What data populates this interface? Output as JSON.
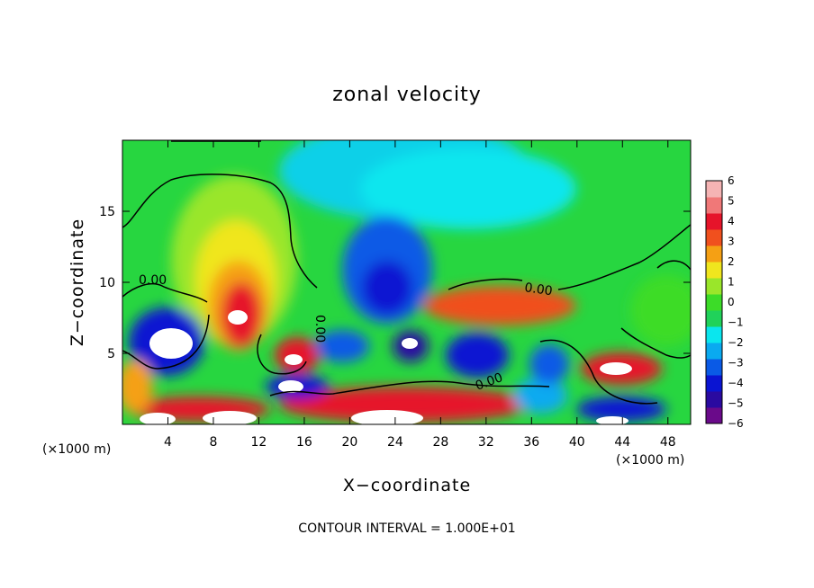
{
  "chart_data": {
    "type": "heatmap",
    "title": "zonal velocity",
    "xlabel": "X−coordinate",
    "ylabel": "Z−coordinate",
    "x_unit": "(×1000 m)",
    "y_unit": "(×1000 m)",
    "xlim": [
      0,
      50
    ],
    "ylim": [
      0,
      20
    ],
    "x_ticks": [
      4,
      8,
      12,
      16,
      20,
      24,
      28,
      32,
      36,
      40,
      44,
      48
    ],
    "y_ticks": [
      5,
      10,
      15
    ],
    "colorbar": {
      "min": -6,
      "max": 6,
      "ticks": [
        6,
        5,
        4,
        3,
        2,
        1,
        0,
        -1,
        -2,
        -3,
        -4,
        -5,
        -6
      ],
      "colors": [
        "#6a0a8a",
        "#2a0aa0",
        "#0a14d2",
        "#0a5ae6",
        "#0aaaf0",
        "#0ae6ee",
        "#20d25a",
        "#3cdc28",
        "#9ae62a",
        "#f0e61e",
        "#f5a014",
        "#f0501e",
        "#e6142a",
        "#f07878",
        "#f5b4b4"
      ]
    },
    "contour_label": "0.00",
    "footer": "CONTOUR INTERVAL = 1.000E+01",
    "grid": false,
    "features": [
      {
        "x": 0,
        "z": 20,
        "value": -1.5
      },
      {
        "x": 8,
        "z": 18,
        "value": -0.3
      },
      {
        "x": 20,
        "z": 18,
        "value": -2.3
      },
      {
        "x": 25,
        "z": 19,
        "value": -3.2
      },
      {
        "x": 36,
        "z": 17,
        "value": -1.6
      },
      {
        "x": 45,
        "z": 17,
        "value": -0.5
      },
      {
        "x": 9,
        "z": 12,
        "value": 1.8
      },
      {
        "x": 10,
        "z": 8,
        "value": 6.5
      },
      {
        "x": 5,
        "z": 6,
        "value": -6.5
      },
      {
        "x": 16,
        "z": 5,
        "value": 4.5
      },
      {
        "x": 23,
        "z": 10,
        "value": -4.5
      },
      {
        "x": 26,
        "z": 5.5,
        "value": -5.2
      },
      {
        "x": 31,
        "z": 5,
        "value": -5.5
      },
      {
        "x": 34,
        "z": 8.5,
        "value": 4.2
      },
      {
        "x": 44,
        "z": 4,
        "value": 6
      },
      {
        "x": 14,
        "z": 2.5,
        "value": -6.5
      },
      {
        "x": 26,
        "z": 2.5,
        "value": 6.5
      },
      {
        "x": 8,
        "z": 0.8,
        "value": 6.5
      },
      {
        "x": 1,
        "z": 2.5,
        "value": 4.5
      },
      {
        "x": 48,
        "z": 8,
        "value": -0.8
      }
    ]
  }
}
